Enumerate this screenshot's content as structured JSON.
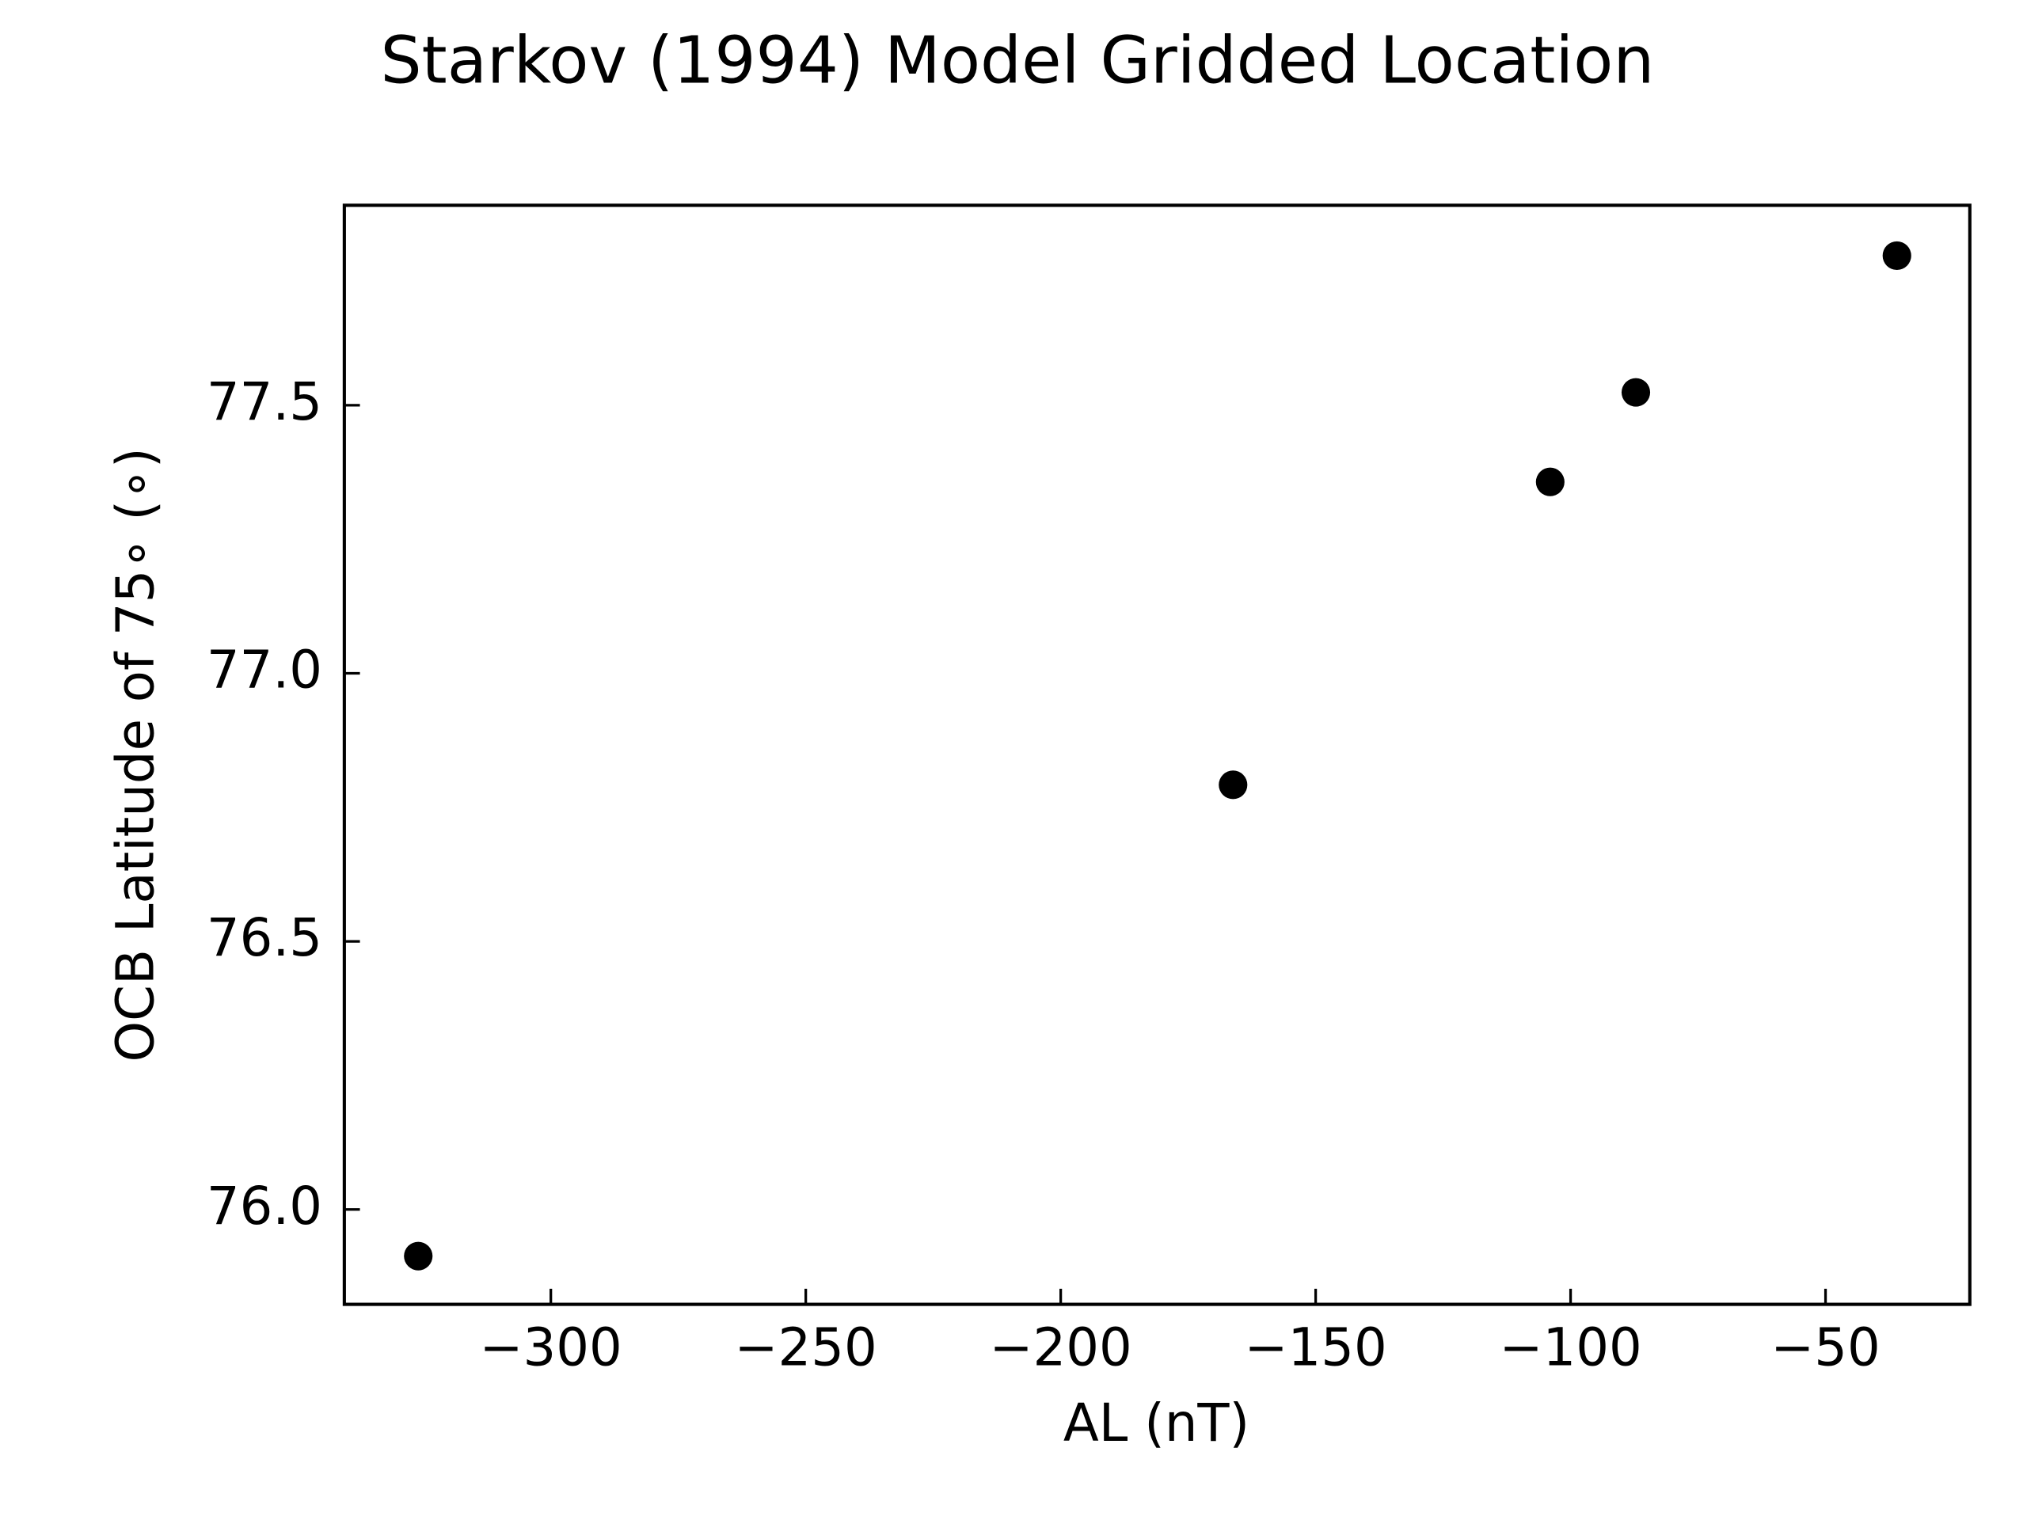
{
  "chart_data": {
    "type": "scatter",
    "title": "Starkov (1994) Model Gridded Location",
    "x_label": "AL (nT)",
    "y_label": "OCB Latitude of 75∘ (∘)",
    "x": [
      -326.0,
      -166.2,
      -104.0,
      -87.2,
      -36.0
    ],
    "y": [
      75.913,
      76.792,
      77.357,
      77.524,
      77.779
    ],
    "color": "#000000",
    "xlim": [
      -340.5,
      -21.7
    ],
    "ylim": [
      75.823,
      77.873
    ],
    "xticks": [
      {
        "value": -300,
        "label": "−300"
      },
      {
        "value": -250,
        "label": "−250"
      },
      {
        "value": -200,
        "label": "−200"
      },
      {
        "value": -150,
        "label": "−150"
      },
      {
        "value": -100,
        "label": "−100"
      },
      {
        "value": -50,
        "label": "−50"
      }
    ],
    "yticks": [
      {
        "value": 76.0,
        "label": "76.0"
      },
      76.5,
      {
        "value": 77.0,
        "label": "77.0"
      },
      77.5
    ],
    "grid": false
  }
}
